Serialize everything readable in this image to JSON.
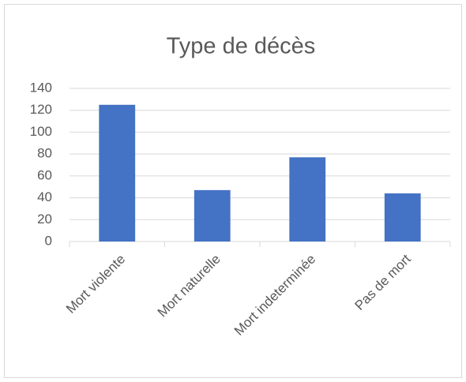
{
  "chart_data": {
    "type": "bar",
    "title": "Type de décès",
    "categories": [
      "Mort violente",
      "Mort naturelle",
      "Mort indeterminée",
      "Pas de mort"
    ],
    "values": [
      125,
      47,
      77,
      44
    ],
    "color": "#4472c4",
    "ylim": [
      0,
      140
    ],
    "yticks": [
      0,
      20,
      40,
      60,
      80,
      100,
      120,
      140
    ],
    "grid": true
  }
}
